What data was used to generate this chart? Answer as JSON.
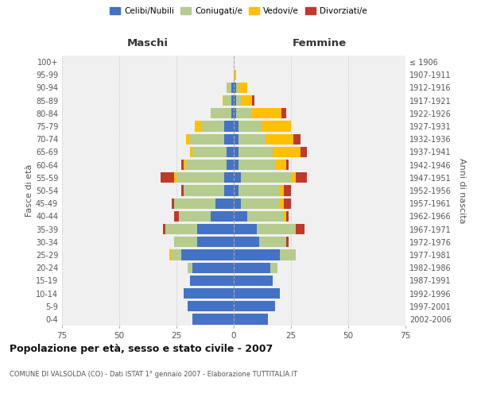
{
  "age_groups": [
    "0-4",
    "5-9",
    "10-14",
    "15-19",
    "20-24",
    "25-29",
    "30-34",
    "35-39",
    "40-44",
    "45-49",
    "50-54",
    "55-59",
    "60-64",
    "65-69",
    "70-74",
    "75-79",
    "80-84",
    "85-89",
    "90-94",
    "95-99",
    "100+"
  ],
  "birth_years": [
    "2002-2006",
    "1997-2001",
    "1992-1996",
    "1987-1991",
    "1982-1986",
    "1977-1981",
    "1972-1976",
    "1967-1971",
    "1962-1966",
    "1957-1961",
    "1952-1956",
    "1947-1951",
    "1942-1946",
    "1937-1941",
    "1932-1936",
    "1927-1931",
    "1922-1926",
    "1917-1921",
    "1912-1916",
    "1907-1911",
    "≤ 1906"
  ],
  "males": {
    "celibi": [
      18,
      20,
      22,
      19,
      18,
      23,
      16,
      16,
      10,
      8,
      4,
      4,
      3,
      3,
      4,
      4,
      1,
      1,
      1,
      0,
      0
    ],
    "coniugati": [
      0,
      0,
      0,
      0,
      2,
      4,
      10,
      14,
      14,
      18,
      18,
      21,
      18,
      15,
      15,
      10,
      9,
      3,
      2,
      0,
      0
    ],
    "vedovi": [
      0,
      0,
      0,
      0,
      0,
      1,
      0,
      0,
      0,
      0,
      0,
      1,
      1,
      1,
      2,
      3,
      0,
      1,
      0,
      0,
      0
    ],
    "divorziati": [
      0,
      0,
      0,
      0,
      0,
      0,
      0,
      1,
      2,
      1,
      1,
      6,
      1,
      0,
      0,
      0,
      0,
      0,
      0,
      0,
      0
    ]
  },
  "females": {
    "nubili": [
      15,
      18,
      20,
      17,
      16,
      20,
      11,
      10,
      6,
      3,
      2,
      3,
      2,
      2,
      2,
      2,
      1,
      1,
      1,
      0,
      0
    ],
    "coniugate": [
      0,
      0,
      0,
      0,
      3,
      7,
      12,
      17,
      16,
      17,
      18,
      22,
      16,
      15,
      12,
      10,
      7,
      2,
      1,
      0,
      0
    ],
    "vedove": [
      0,
      0,
      0,
      0,
      0,
      0,
      0,
      0,
      1,
      2,
      2,
      2,
      5,
      12,
      12,
      13,
      13,
      5,
      4,
      1,
      0
    ],
    "divorziate": [
      0,
      0,
      0,
      0,
      0,
      0,
      1,
      4,
      1,
      3,
      3,
      5,
      1,
      3,
      3,
      0,
      2,
      1,
      0,
      0,
      0
    ]
  },
  "colors": {
    "celibi_nubili": "#4472c4",
    "coniugati": "#b5cc8e",
    "vedovi": "#ffc000",
    "divorziati": "#c0392b"
  },
  "xlim": 75,
  "title": "Popolazione per età, sesso e stato civile - 2007",
  "subtitle": "COMUNE DI VALSOLDA (CO) - Dati ISTAT 1° gennaio 2007 - Elaborazione TUTTITALIA.IT",
  "ylabel_left": "Fasce di età",
  "ylabel_right": "Anni di nascita",
  "xlabel_left": "Maschi",
  "xlabel_right": "Femmine",
  "bg_color": "#f0f0f0",
  "grid_color": "#cccccc"
}
